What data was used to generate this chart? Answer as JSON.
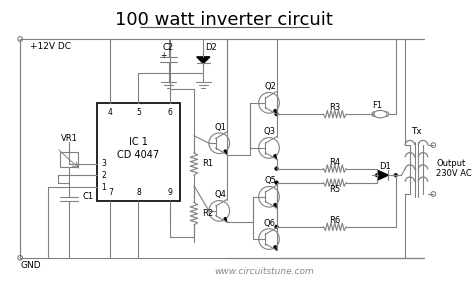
{
  "title": "100 watt inverter circuit",
  "bg_color": "#ffffff",
  "line_color": "#808080",
  "text_color": "#000000",
  "title_fontsize": 13,
  "label_fontsize": 7,
  "watermark": "www.circuitstune.com",
  "output_label": "Output\n230V AC",
  "ic_label1": "IC 1",
  "ic_label2": "CD 4047",
  "vdd_label": "+12V DC",
  "gnd_label": "GND"
}
